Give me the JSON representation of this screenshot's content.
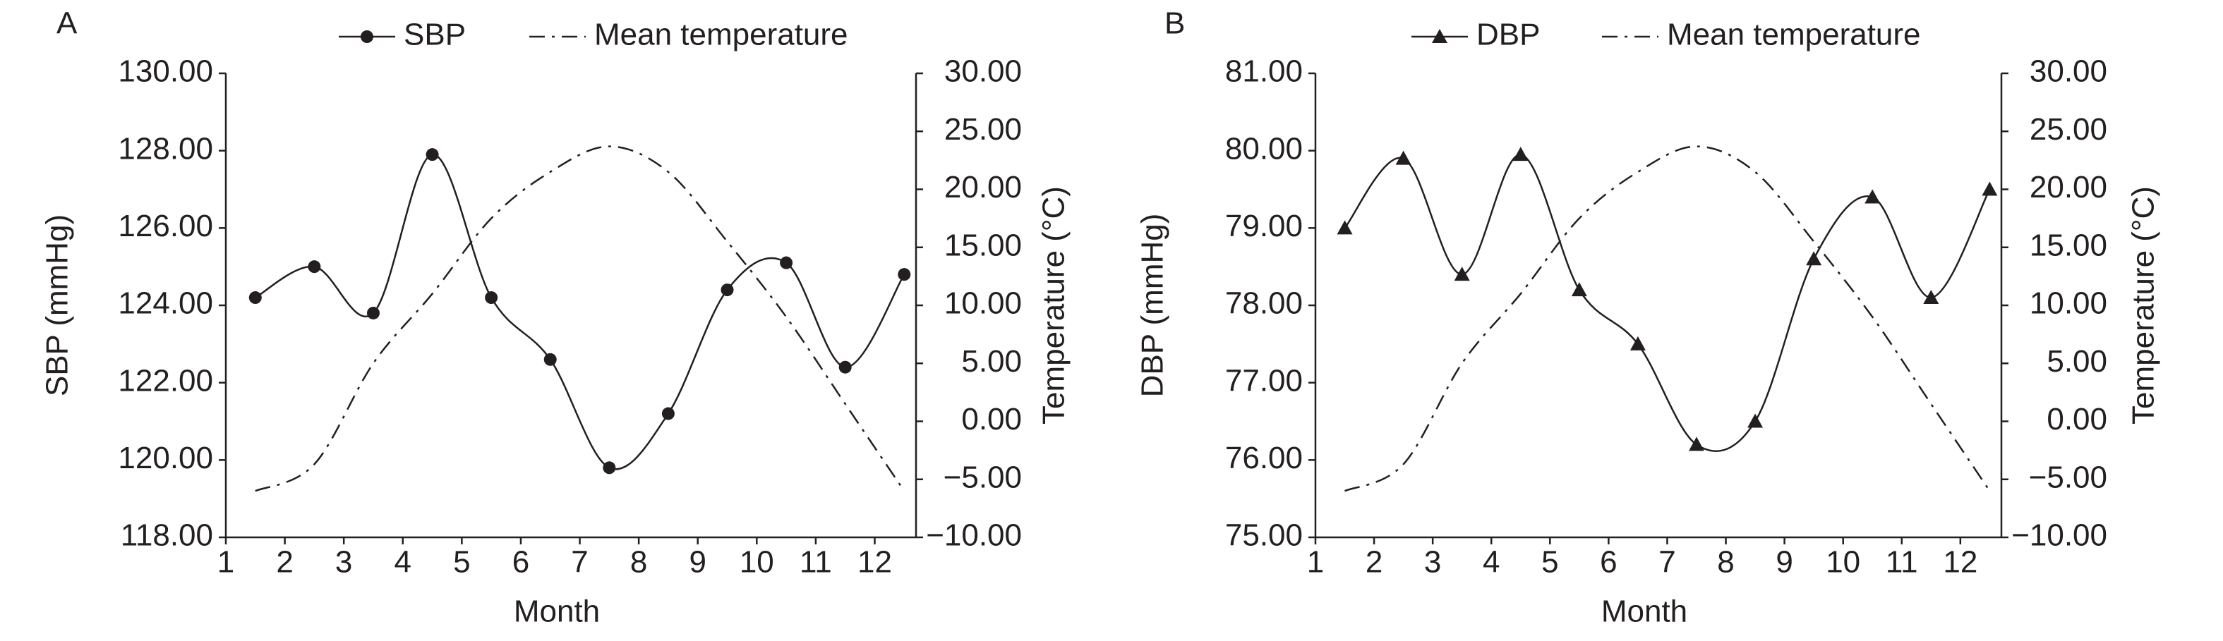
{
  "chart_data": [
    {
      "type": "line",
      "panel_label": "A",
      "xlabel": "Month",
      "ylabel": "SBP (mmHg)",
      "y2label": "Temperature (°C)",
      "x": [
        1.5,
        2.5,
        3.5,
        4.5,
        5.5,
        6.5,
        7.5,
        8.5,
        9.5,
        10.5,
        11.5,
        12.5
      ],
      "xlim": [
        1,
        12.7
      ],
      "xticks": [
        1,
        2,
        3,
        4,
        5,
        6,
        7,
        8,
        9,
        10,
        11,
        12
      ],
      "ylim": [
        118,
        130
      ],
      "yticks": [
        {
          "value": 118,
          "label": "118.00"
        },
        {
          "value": 120,
          "label": "120.00"
        },
        {
          "value": 122,
          "label": "122.00"
        },
        {
          "value": 124,
          "label": "124.00"
        },
        {
          "value": 126,
          "label": "126.00"
        },
        {
          "value": 128,
          "label": "128.00"
        },
        {
          "value": 130,
          "label": "130.00"
        }
      ],
      "y2lim": [
        -10,
        30
      ],
      "y2ticks": [
        {
          "value": -10,
          "label": "−10.00"
        },
        {
          "value": -5,
          "label": "−5.00"
        },
        {
          "value": 0,
          "label": "0.00"
        },
        {
          "value": 5,
          "label": "5.00"
        },
        {
          "value": 10,
          "label": "10.00"
        },
        {
          "value": 15,
          "label": "15.00"
        },
        {
          "value": 20,
          "label": "20.00"
        },
        {
          "value": 25,
          "label": "25.00"
        },
        {
          "value": 30,
          "label": "30.00"
        }
      ],
      "series": [
        {
          "name": "SBP",
          "color": "#231f20",
          "marker": "circle",
          "dash": "solid",
          "values": [
            124.2,
            125.0,
            123.8,
            127.9,
            124.2,
            122.6,
            119.8,
            121.2,
            124.4,
            125.1,
            122.4,
            124.8
          ]
        },
        {
          "name": "Mean temperature",
          "color": "#231f20",
          "marker": "none",
          "dash": "dash-dot",
          "axis": "y2",
          "values": [
            -6.0,
            -3.7,
            5.0,
            11.0,
            17.5,
            21.5,
            23.7,
            21.5,
            15.5,
            9.0,
            1.5,
            -6.0
          ]
        }
      ]
    },
    {
      "type": "line",
      "panel_label": "B",
      "xlabel": "Month",
      "ylabel": "DBP (mmHg)",
      "y2label": "Temperature (°C)",
      "x": [
        1.5,
        2.5,
        3.5,
        4.5,
        5.5,
        6.5,
        7.5,
        8.5,
        9.5,
        10.5,
        11.5,
        12.5
      ],
      "xlim": [
        1,
        12.7
      ],
      "xticks": [
        1,
        2,
        3,
        4,
        5,
        6,
        7,
        8,
        9,
        10,
        11,
        12
      ],
      "ylim": [
        75,
        81
      ],
      "yticks": [
        {
          "value": 75,
          "label": "75.00"
        },
        {
          "value": 76,
          "label": "76.00"
        },
        {
          "value": 77,
          "label": "77.00"
        },
        {
          "value": 78,
          "label": "78.00"
        },
        {
          "value": 79,
          "label": "79.00"
        },
        {
          "value": 80,
          "label": "80.00"
        },
        {
          "value": 81,
          "label": "81.00"
        }
      ],
      "y2lim": [
        -10,
        30
      ],
      "y2ticks": [
        {
          "value": -10,
          "label": "−10.00"
        },
        {
          "value": -5,
          "label": "−5.00"
        },
        {
          "value": 0,
          "label": "0.00"
        },
        {
          "value": 5,
          "label": "5.00"
        },
        {
          "value": 10,
          "label": "10.00"
        },
        {
          "value": 15,
          "label": "15.00"
        },
        {
          "value": 20,
          "label": "20.00"
        },
        {
          "value": 25,
          "label": "25.00"
        },
        {
          "value": 30,
          "label": "30.00"
        }
      ],
      "series": [
        {
          "name": "DBP",
          "color": "#231f20",
          "marker": "triangle",
          "dash": "solid",
          "values": [
            79.0,
            79.9,
            78.4,
            79.95,
            78.2,
            77.5,
            76.2,
            76.5,
            78.6,
            79.4,
            78.1,
            79.5
          ]
        },
        {
          "name": "Mean temperature",
          "color": "#231f20",
          "marker": "none",
          "dash": "dash-dot",
          "axis": "y2",
          "values": [
            -6.0,
            -3.7,
            5.0,
            11.0,
            17.5,
            21.5,
            23.7,
            21.5,
            15.5,
            9.0,
            1.5,
            -6.0
          ]
        }
      ]
    }
  ]
}
